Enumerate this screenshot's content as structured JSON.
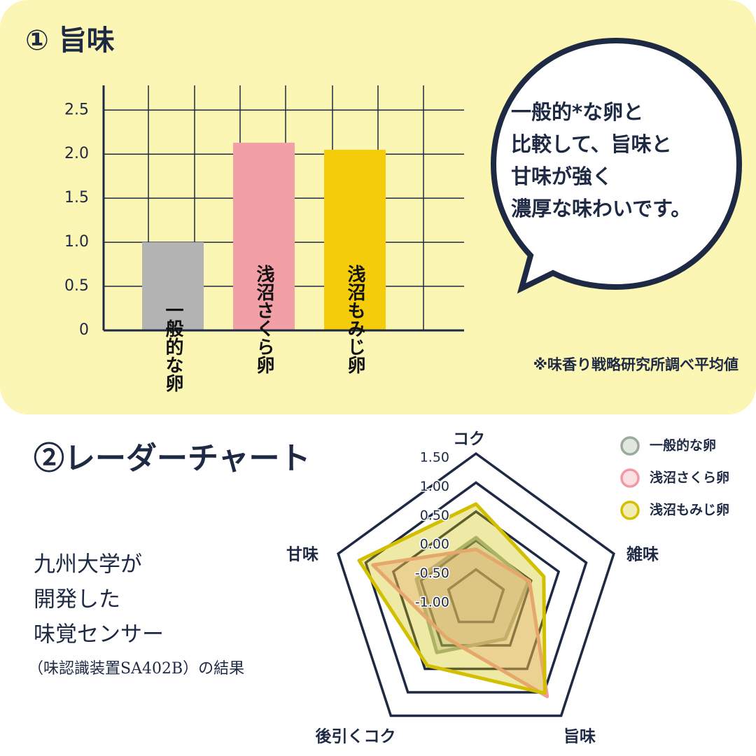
{
  "chart_data": [
    {
      "type": "bar",
      "title": "① 旨味",
      "categories": [
        "一般的な卵",
        "浅沼さくら卵",
        "浅沼もみじ卵"
      ],
      "values": [
        1.0,
        2.13,
        2.05
      ],
      "colors": [
        "#b3b3b3",
        "#f2a0a6",
        "#f5cc0a"
      ],
      "ylim": [
        0,
        2.78
      ],
      "yticks": [
        0,
        0.5,
        {
          "value": 1,
          "label": "1.0"
        },
        1.5,
        {
          "value": 2,
          "label": "2.0"
        },
        2.5
      ],
      "grid": true,
      "annotations": [
        "一般的*な卵と",
        "比較して、旨味と",
        "甘味が強く",
        "濃厚な味わいです。",
        "※味香り戦略研究所調べ平均値"
      ]
    },
    {
      "type": "radar",
      "title": "②レーダーチャート",
      "categories": [
        "コク",
        "雑味",
        "旨味",
        "後引くコク",
        "甘味"
      ],
      "rlim": [
        -1.0,
        1.5
      ],
      "rticks": [
        {
          "value": 1.5,
          "label": "1.50"
        },
        {
          "value": 1,
          "label": "1.00"
        },
        {
          "value": 0.5,
          "label": "0.50"
        },
        {
          "value": 0,
          "label": "0.00"
        },
        {
          "value": -0.5,
          "label": "-0.50"
        },
        {
          "value": -1,
          "label": "-1.00"
        }
      ],
      "series": [
        {
          "name": "一般的な卵",
          "color": "#9aab9a",
          "values": [
            0.05,
            -0.05,
            -0.14,
            0.15,
            0.08
          ]
        },
        {
          "name": "浅沼さくら卵",
          "color": "#f19aa6",
          "values": [
            -0.15,
            -0.03,
            1.09,
            -0.15,
            0.87
          ]
        },
        {
          "name": "浅沼もみじ卵",
          "color": "#d2c000",
          "values": [
            0.63,
            0.23,
            1.02,
            0.43,
            1.12
          ]
        }
      ],
      "legend": "top-right",
      "annotations": [
        "九州大学が",
        "開発した",
        "味覚センサー",
        "（味認識装置SA402B）の結果"
      ]
    }
  ]
}
